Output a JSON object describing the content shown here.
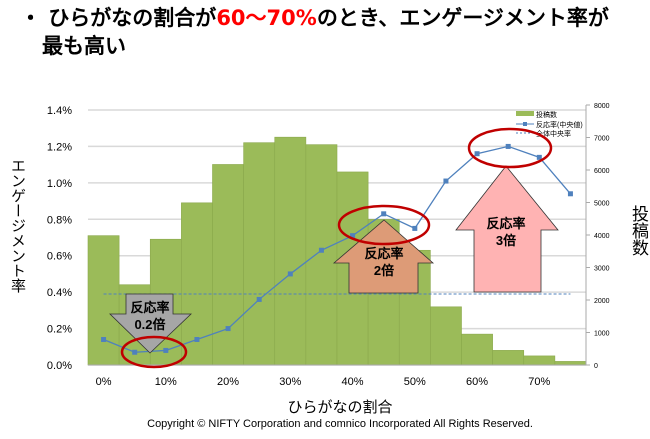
{
  "title": {
    "bullet": "・",
    "part1": "ひらがなの割合が",
    "highlight": "60〜70%",
    "part2": "のとき、エンゲージメント率が",
    "line2": "最も高い"
  },
  "copyright": "Copyright © NIFTY Corporation and comnico Incorporated All Rights Reserved.",
  "colors": {
    "bar": "#9bbb59",
    "line": "#4f81bd",
    "ellipse": "#c00000",
    "highlight": "#ff0000"
  },
  "annotations": [
    {
      "label1": "反応率",
      "label2": "0.2倍",
      "color": "#a6a6a6",
      "direction": "down"
    },
    {
      "label1": "反応率",
      "label2": "2倍",
      "color": "#dd9b77",
      "direction": "up"
    },
    {
      "label1": "反応率",
      "label2": "3倍",
      "color": "#ffb3b3",
      "direction": "up"
    }
  ],
  "chart_data": {
    "type": "bar",
    "xlabel": "ひらがなの割合",
    "ylabel": "エンゲージメント率",
    "y2label": "投稿数",
    "x_tick_labels": [
      "0%",
      "10%",
      "20%",
      "30%",
      "40%",
      "50%",
      "60%",
      "70%"
    ],
    "y_ticks": [
      "0.0%",
      "0.2%",
      "0.4%",
      "0.6%",
      "0.8%",
      "1.0%",
      "1.2%",
      "1.4%"
    ],
    "y2_ticks": [
      "0",
      "1000",
      "2000",
      "3000",
      "4000",
      "5000",
      "6000",
      "7000",
      "8000"
    ],
    "ylim": [
      0,
      1.4
    ],
    "y2lim": [
      0,
      8000
    ],
    "legend": [
      "投稿数",
      "反応率(中央値)",
      "全体中央率"
    ],
    "legend_position": "top-right",
    "series": [
      {
        "name": "投稿数",
        "type": "bar",
        "axis": "right",
        "values": [
          3980,
          2470,
          3870,
          4990,
          6170,
          6840,
          7010,
          6780,
          5940,
          4480,
          3530,
          1790,
          950,
          450,
          280,
          110
        ]
      },
      {
        "name": "反応率(中央値)",
        "type": "line",
        "axis": "left",
        "values": [
          0.14,
          0.07,
          0.08,
          0.14,
          0.2,
          0.36,
          0.5,
          0.63,
          0.71,
          0.83,
          0.75,
          1.01,
          1.16,
          1.2,
          1.14,
          0.94
        ]
      },
      {
        "name": "全体中央率",
        "type": "line-dashed",
        "axis": "left",
        "value": 0.39
      }
    ]
  }
}
